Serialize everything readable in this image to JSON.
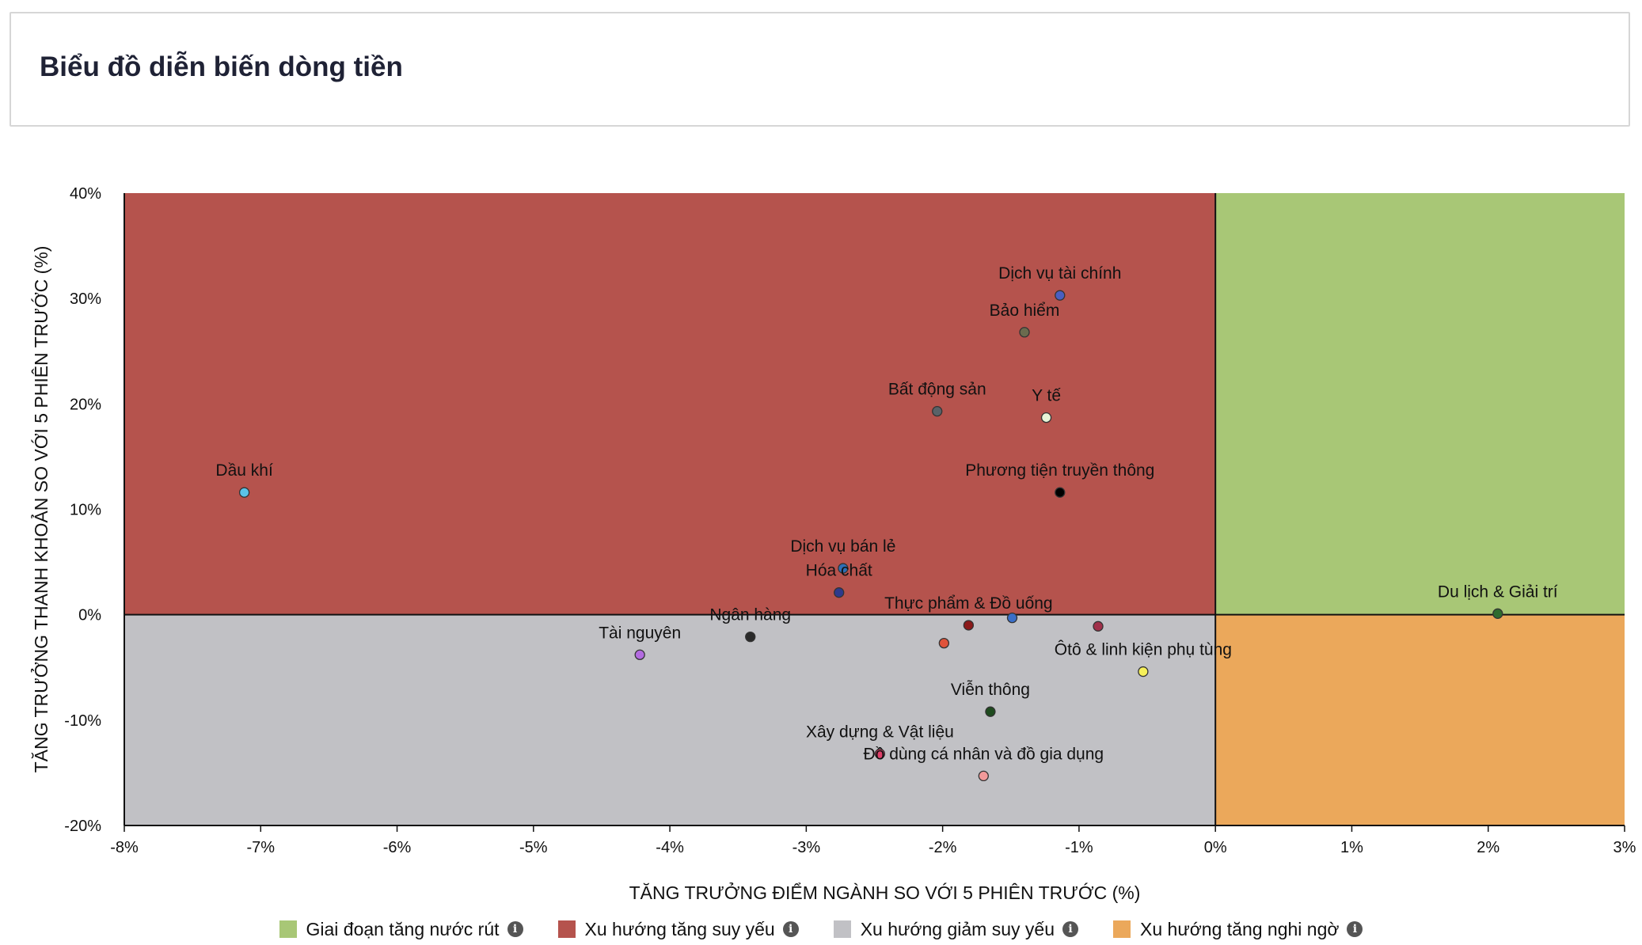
{
  "header": {
    "title": "Biểu đồ diễn biến dòng tiền"
  },
  "colors": {
    "q1": "#a8c776",
    "q2": "#b5534d",
    "q3": "#c1c1c5",
    "q4": "#eba85b"
  },
  "legend": [
    {
      "label": "Giai đoạn tăng nước rút",
      "color": "#a8c776",
      "icon": "info-icon"
    },
    {
      "label": "Xu hướng tăng suy yếu",
      "color": "#b5534d",
      "icon": "info-icon"
    },
    {
      "label": "Xu hướng giảm suy yếu",
      "color": "#c1c1c5",
      "icon": "info-icon"
    },
    {
      "label": "Xu hướng tăng nghi ngờ",
      "color": "#eba85b",
      "icon": "info-icon"
    }
  ],
  "chart_data": {
    "type": "scatter",
    "title": "",
    "xlabel": "TĂNG TRƯỞNG ĐIỂM NGÀNH SO VỚI 5 PHIÊN TRƯỚC (%)",
    "ylabel": "TĂNG TRƯỞNG THANH KHOẢN SO VỚI 5 PHIÊN TRƯỚC (%)",
    "xlim": [
      -8,
      3
    ],
    "ylim": [
      -20,
      40
    ],
    "xticks": [
      -8,
      -7,
      -6,
      -5,
      -4,
      -3,
      -2,
      -1,
      0,
      1,
      2,
      3
    ],
    "xtick_labels": [
      "-8%",
      "-7%",
      "-6%",
      "-5%",
      "-4%",
      "-3%",
      "-2%",
      "-1%",
      "0%",
      "1%",
      "2%",
      "3%"
    ],
    "yticks": [
      40,
      30,
      20,
      10,
      0,
      -10,
      -20
    ],
    "ytick_labels": [
      "40%",
      "30%",
      "20%",
      "10%",
      "0%",
      "-10%",
      "-20%"
    ],
    "points": [
      {
        "name": "Dịch vụ tài chính",
        "x": -1.14,
        "y": 30.3,
        "color": "#4a5fc1"
      },
      {
        "name": "Bảo hiểm",
        "x": -1.4,
        "y": 26.8,
        "color": "#6b6b4e"
      },
      {
        "name": "Bất động sản",
        "x": -2.04,
        "y": 19.3,
        "color": "#596268"
      },
      {
        "name": "Y tế",
        "x": -1.24,
        "y": 18.7,
        "color": "#e8f5d8"
      },
      {
        "name": "Dầu khí",
        "x": -7.12,
        "y": 11.6,
        "color": "#5bc2e7"
      },
      {
        "name": "Phương tiện truyền thông",
        "x": -1.14,
        "y": 11.6,
        "color": "#000000"
      },
      {
        "name": "Dịch vụ bán lẻ",
        "x": -2.73,
        "y": 4.4,
        "color": "#2c6fb7"
      },
      {
        "name": "Hóa chất",
        "x": -2.76,
        "y": 2.1,
        "color": "#2d3a8c"
      },
      {
        "name": "Du lịch & Giải trí",
        "x": 2.07,
        "y": 0.1,
        "color": "#2e6b2e"
      },
      {
        "name": "Thực phẩm & Đồ uống",
        "x": -1.81,
        "y": -1.0,
        "color": "#8b1a1a"
      },
      {
        "name": "Ngân hàng",
        "x": -3.41,
        "y": -2.1,
        "color": "#2a2a2a"
      },
      {
        "name": "Tài nguyên",
        "x": -4.22,
        "y": -3.8,
        "color": "#b36be0"
      },
      {
        "name": "Ôtô & linh kiện phụ tùng",
        "x": -0.53,
        "y": -5.4,
        "color": "#f6f05a"
      },
      {
        "name": "Viễn thông",
        "x": -1.65,
        "y": -9.2,
        "color": "#1e4a1e"
      },
      {
        "name": "Xây dựng & Vật liệu",
        "x": -2.46,
        "y": -13.2,
        "color": "#e0406a"
      },
      {
        "name": "Đồ dùng cá nhân và đồ gia dụng",
        "x": -1.7,
        "y": -15.3,
        "color": "#f29a9a"
      },
      {
        "name": "",
        "x": -1.99,
        "y": -2.7,
        "color": "#e0533a"
      },
      {
        "name": "",
        "x": -1.49,
        "y": -0.3,
        "color": "#3a6fc9"
      },
      {
        "name": "",
        "x": -0.86,
        "y": -1.1,
        "color": "#a0304a"
      }
    ]
  }
}
